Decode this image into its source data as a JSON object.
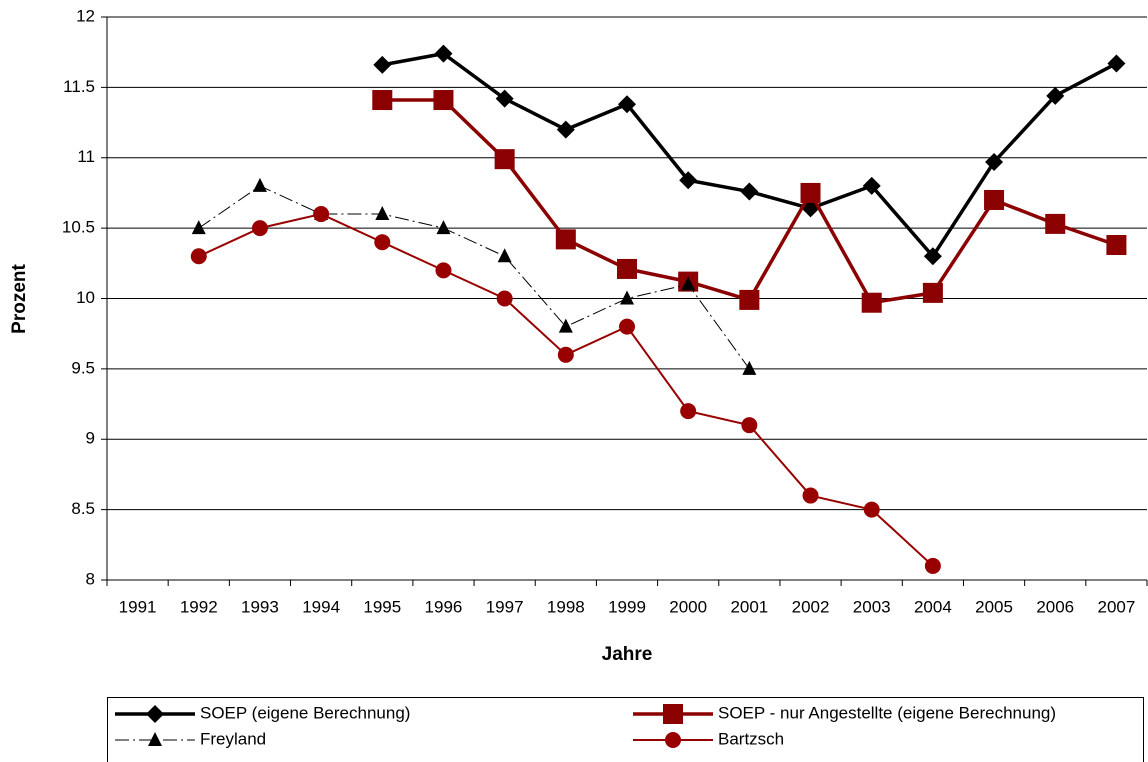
{
  "chart_data": {
    "type": "line",
    "x_label": "Jahre",
    "y_label": "Prozent",
    "categories": [
      "1991",
      "1992",
      "1993",
      "1994",
      "1995",
      "1996",
      "1997",
      "1998",
      "1999",
      "2000",
      "2001",
      "2002",
      "2003",
      "2004",
      "2005",
      "2006",
      "2007"
    ],
    "ylim": [
      8,
      12
    ],
    "yticks": [
      8,
      8.5,
      9,
      9.5,
      10,
      10.5,
      11,
      11.5,
      12
    ],
    "grid": true,
    "series": [
      {
        "name": "SOEP (eigene Berechnung)",
        "color": "#000000",
        "marker": "diamond",
        "values": [
          null,
          null,
          null,
          null,
          11.66,
          11.74,
          11.42,
          11.2,
          11.38,
          10.84,
          10.76,
          10.64,
          10.8,
          10.3,
          10.97,
          11.44,
          11.67
        ]
      },
      {
        "name": "SOEP - nur Angestellte (eigene Berechnung)",
        "color": "#8b0000",
        "marker": "square",
        "values": [
          null,
          null,
          null,
          null,
          11.41,
          11.41,
          10.99,
          10.42,
          10.21,
          10.12,
          9.99,
          10.75,
          9.97,
          10.04,
          10.7,
          10.53,
          10.38
        ]
      },
      {
        "name": "Freyland",
        "color": "#000000",
        "marker": "triangle",
        "values": [
          null,
          10.5,
          10.8,
          10.6,
          10.6,
          10.5,
          10.3,
          9.8,
          10.0,
          10.1,
          9.5,
          null,
          null,
          null,
          null,
          null,
          null
        ]
      },
      {
        "name": "Bartzsch",
        "color": "#990000",
        "marker": "circle",
        "values": [
          null,
          10.3,
          10.5,
          10.6,
          10.4,
          10.2,
          10.0,
          9.6,
          9.8,
          9.2,
          9.1,
          8.6,
          8.5,
          8.1,
          null,
          null,
          null
        ]
      }
    ],
    "legend": "bottom"
  }
}
